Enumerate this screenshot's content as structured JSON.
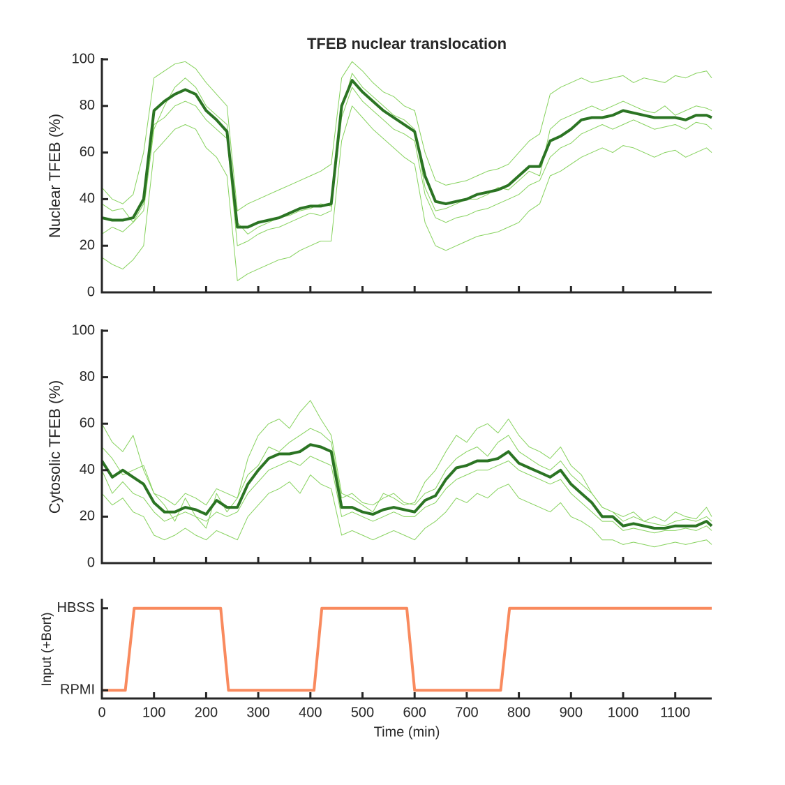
{
  "chart_data": [
    {
      "type": "line",
      "title": "TFEB nuclear translocation",
      "ylabel": "Nuclear TFEB (%)",
      "x": [
        0,
        20,
        40,
        60,
        80,
        100,
        120,
        140,
        160,
        180,
        200,
        220,
        240,
        260,
        280,
        300,
        320,
        340,
        360,
        380,
        400,
        420,
        440,
        460,
        480,
        500,
        520,
        540,
        560,
        580,
        600,
        620,
        640,
        660,
        680,
        700,
        720,
        740,
        760,
        780,
        800,
        820,
        840,
        860,
        880,
        900,
        920,
        940,
        960,
        980,
        1000,
        1020,
        1040,
        1060,
        1080,
        1100,
        1120,
        1140,
        1160,
        1170
      ],
      "xlim": [
        0,
        1170
      ],
      "xticks": [
        0,
        100,
        200,
        300,
        400,
        500,
        600,
        700,
        800,
        900,
        1000,
        1100
      ],
      "ylim": [
        0,
        100
      ],
      "yticks": [
        0,
        20,
        40,
        60,
        80,
        100
      ],
      "series": [
        {
          "color": "#86d25d",
          "linewidth": 1,
          "values": [
            45,
            40,
            38,
            42,
            60,
            92,
            95,
            98,
            99,
            96,
            90,
            85,
            80,
            35,
            38,
            40,
            42,
            44,
            46,
            48,
            50,
            52,
            55,
            92,
            99,
            95,
            90,
            86,
            84,
            80,
            78,
            60,
            48,
            46,
            47,
            48,
            50,
            52,
            53,
            55,
            60,
            65,
            68,
            85,
            88,
            90,
            92,
            90,
            91,
            92,
            93,
            90,
            92,
            91,
            90,
            93,
            92,
            94,
            95,
            92
          ]
        },
        {
          "color": "#86d25d",
          "linewidth": 1,
          "values": [
            15,
            12,
            10,
            14,
            20,
            60,
            65,
            70,
            72,
            70,
            62,
            58,
            50,
            5,
            8,
            10,
            12,
            14,
            15,
            18,
            20,
            22,
            22,
            65,
            80,
            75,
            70,
            66,
            62,
            58,
            55,
            30,
            20,
            18,
            20,
            22,
            24,
            25,
            26,
            28,
            30,
            35,
            38,
            50,
            52,
            55,
            58,
            60,
            62,
            60,
            63,
            62,
            60,
            58,
            60,
            61,
            58,
            60,
            62,
            60
          ]
        },
        {
          "color": "#86d25d",
          "linewidth": 1,
          "values": [
            38,
            35,
            36,
            30,
            35,
            70,
            80,
            88,
            92,
            88,
            80,
            76,
            72,
            30,
            25,
            28,
            30,
            32,
            33,
            35,
            36,
            38,
            37,
            78,
            94,
            88,
            84,
            80,
            76,
            74,
            70,
            45,
            35,
            36,
            38,
            40,
            40,
            42,
            45,
            44,
            48,
            52,
            50,
            70,
            74,
            76,
            78,
            80,
            78,
            80,
            82,
            80,
            78,
            77,
            80,
            76,
            78,
            80,
            79,
            78
          ]
        },
        {
          "color": "#86d25d",
          "linewidth": 1,
          "values": [
            25,
            28,
            26,
            30,
            38,
            72,
            75,
            80,
            82,
            80,
            74,
            70,
            66,
            20,
            22,
            25,
            27,
            28,
            30,
            32,
            34,
            33,
            35,
            75,
            88,
            82,
            78,
            74,
            70,
            68,
            65,
            42,
            32,
            30,
            32,
            33,
            35,
            36,
            38,
            40,
            42,
            46,
            48,
            58,
            62,
            64,
            68,
            70,
            72,
            70,
            72,
            74,
            72,
            70,
            71,
            72,
            70,
            73,
            72,
            70
          ]
        },
        {
          "color": "#2b7423",
          "linewidth": 4,
          "values": [
            32,
            31,
            31,
            32,
            40,
            78,
            82,
            85,
            87,
            85,
            78,
            74,
            69,
            28,
            28,
            30,
            31,
            32,
            34,
            36,
            37,
            37,
            38,
            80,
            91,
            86,
            82,
            78,
            75,
            72,
            69,
            50,
            39,
            38,
            39,
            40,
            42,
            43,
            44,
            46,
            50,
            54,
            54,
            65,
            67,
            70,
            74,
            75,
            75,
            76,
            78,
            77,
            76,
            75,
            75,
            75,
            74,
            76,
            76,
            75
          ]
        }
      ]
    },
    {
      "type": "line",
      "ylabel": "Cytosolic TFEB (%)",
      "x": [
        0,
        20,
        40,
        60,
        80,
        100,
        120,
        140,
        160,
        180,
        200,
        220,
        240,
        260,
        280,
        300,
        320,
        340,
        360,
        380,
        400,
        420,
        440,
        460,
        480,
        500,
        520,
        540,
        560,
        580,
        600,
        620,
        640,
        660,
        680,
        700,
        720,
        740,
        760,
        780,
        800,
        820,
        840,
        860,
        880,
        900,
        920,
        940,
        960,
        980,
        1000,
        1020,
        1040,
        1060,
        1080,
        1100,
        1120,
        1140,
        1160,
        1170
      ],
      "xlim": [
        0,
        1170
      ],
      "xticks": [
        0,
        100,
        200,
        300,
        400,
        500,
        600,
        700,
        800,
        900,
        1000,
        1100
      ],
      "ylim": [
        0,
        100
      ],
      "yticks": [
        0,
        20,
        40,
        60,
        80,
        100
      ],
      "series": [
        {
          "color": "#86d25d",
          "linewidth": 1,
          "values": [
            60,
            52,
            48,
            55,
            40,
            30,
            25,
            18,
            28,
            20,
            15,
            30,
            22,
            28,
            45,
            55,
            60,
            62,
            58,
            65,
            70,
            62,
            55,
            30,
            28,
            25,
            22,
            30,
            28,
            25,
            26,
            35,
            40,
            48,
            55,
            52,
            58,
            60,
            56,
            62,
            55,
            50,
            48,
            45,
            50,
            42,
            38,
            30,
            24,
            22,
            20,
            22,
            18,
            20,
            18,
            22,
            20,
            19,
            24,
            20
          ]
        },
        {
          "color": "#86d25d",
          "linewidth": 1,
          "values": [
            30,
            25,
            28,
            22,
            20,
            12,
            10,
            12,
            15,
            12,
            10,
            14,
            12,
            10,
            20,
            25,
            30,
            32,
            35,
            30,
            38,
            34,
            32,
            12,
            14,
            12,
            10,
            12,
            14,
            12,
            10,
            15,
            18,
            22,
            28,
            26,
            30,
            28,
            32,
            34,
            28,
            26,
            24,
            22,
            26,
            20,
            18,
            15,
            10,
            10,
            8,
            9,
            8,
            7,
            8,
            9,
            8,
            9,
            10,
            8
          ]
        },
        {
          "color": "#86d25d",
          "linewidth": 1,
          "values": [
            50,
            45,
            38,
            40,
            42,
            30,
            28,
            25,
            30,
            28,
            25,
            32,
            30,
            28,
            38,
            42,
            50,
            48,
            52,
            55,
            58,
            56,
            52,
            28,
            30,
            26,
            25,
            28,
            30,
            26,
            25,
            30,
            32,
            40,
            45,
            48,
            50,
            46,
            52,
            55,
            48,
            45,
            42,
            40,
            44,
            38,
            34,
            30,
            24,
            22,
            18,
            20,
            18,
            17,
            16,
            18,
            19,
            18,
            20,
            18
          ]
        },
        {
          "color": "#86d25d",
          "linewidth": 1,
          "values": [
            40,
            30,
            35,
            30,
            28,
            22,
            18,
            20,
            22,
            20,
            18,
            22,
            20,
            22,
            30,
            35,
            40,
            42,
            44,
            42,
            46,
            44,
            42,
            20,
            22,
            20,
            18,
            20,
            22,
            20,
            20,
            24,
            26,
            32,
            36,
            38,
            40,
            40,
            42,
            44,
            40,
            38,
            36,
            34,
            36,
            30,
            26,
            22,
            18,
            18,
            14,
            15,
            14,
            13,
            14,
            14,
            15,
            14,
            16,
            14
          ]
        },
        {
          "color": "#2b7423",
          "linewidth": 4,
          "values": [
            44,
            37,
            40,
            37,
            34,
            26,
            22,
            22,
            24,
            23,
            21,
            27,
            24,
            24,
            34,
            40,
            45,
            47,
            47,
            48,
            51,
            50,
            48,
            24,
            24,
            22,
            21,
            23,
            24,
            23,
            22,
            27,
            29,
            36,
            41,
            42,
            44,
            44,
            45,
            48,
            43,
            41,
            39,
            37,
            40,
            34,
            30,
            26,
            20,
            20,
            16,
            17,
            16,
            15,
            15,
            16,
            16,
            16,
            18,
            16
          ]
        }
      ]
    },
    {
      "type": "line",
      "ylabel": "Input (+Bort)",
      "xlabel": "Time (min)",
      "x": [
        0,
        45,
        62,
        228,
        243,
        407,
        422,
        585,
        600,
        765,
        782,
        1170
      ],
      "xlim": [
        0,
        1170
      ],
      "xticks": [
        0,
        100,
        200,
        300,
        400,
        500,
        600,
        700,
        800,
        900,
        1000,
        1100
      ],
      "xticklabels": true,
      "ylim": [
        -0.1,
        1.1
      ],
      "yticks": [
        {
          "value": 0,
          "label": "RPMI"
        },
        {
          "value": 1,
          "label": "HBSS"
        }
      ],
      "series": [
        {
          "color": "#f98a5e",
          "linewidth": 4,
          "values": [
            0,
            0,
            1,
            1,
            0,
            0,
            1,
            1,
            0,
            0,
            1,
            1
          ]
        }
      ]
    }
  ]
}
